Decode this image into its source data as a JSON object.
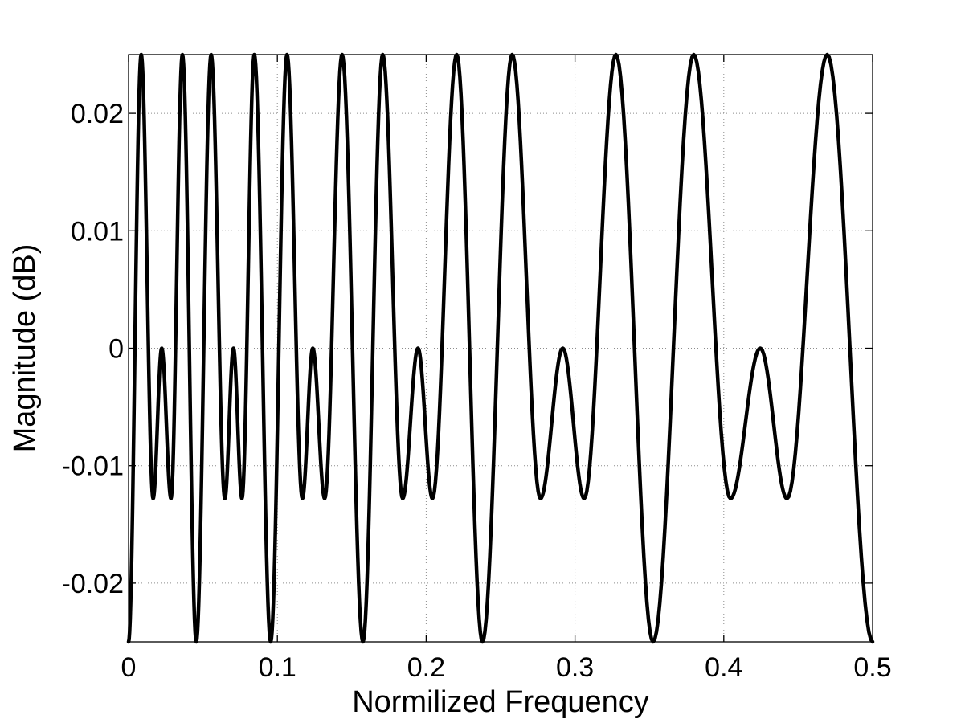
{
  "chart_data": {
    "type": "line",
    "title": "",
    "xlabel": "Normilized Frequency",
    "ylabel": "Magnitude (dB)",
    "xlim": [
      0,
      0.5
    ],
    "ylim": [
      -0.025,
      0.025
    ],
    "x_ticks": [
      0,
      0.1,
      0.2,
      0.3,
      0.4,
      0.5
    ],
    "x_tick_labels": [
      "0",
      "0.1",
      "0.2",
      "0.3",
      "0.4",
      "0.5"
    ],
    "y_ticks": [
      -0.02,
      -0.01,
      0,
      0.01,
      0.02
    ],
    "y_tick_labels": [
      "-0.02",
      "-0.01",
      "0",
      "0.01",
      "0.02"
    ],
    "grid": true,
    "line_color": "#000000",
    "series": [
      {
        "x": [
          0,
          0.0085,
          0.0165,
          0.0223,
          0.0285,
          0.0362,
          0.0455,
          0.0555,
          0.0647,
          0.0705,
          0.0762,
          0.0845,
          0.0955,
          0.1065,
          0.1168,
          0.1238,
          0.1318,
          0.1435,
          0.1575,
          0.1708,
          0.1842,
          0.1945,
          0.2042,
          0.2205,
          0.2378,
          0.2578,
          0.2768,
          0.2918,
          0.3062,
          0.3275,
          0.3525,
          0.3798,
          0.4045,
          0.4245,
          0.4425,
          0.4695,
          0.5
        ],
        "y": [
          -0.025,
          0.025,
          -0.0128,
          0,
          -0.0128,
          0.025,
          -0.025,
          0.025,
          -0.0128,
          0,
          -0.0128,
          0.025,
          -0.025,
          0.025,
          -0.0128,
          0,
          -0.0128,
          0.025,
          -0.025,
          0.025,
          -0.0128,
          0,
          -0.0128,
          0.025,
          -0.025,
          0.025,
          -0.0128,
          0,
          -0.0128,
          0.025,
          -0.025,
          0.025,
          -0.0128,
          0,
          -0.0128,
          0.025,
          -0.025
        ]
      }
    ]
  }
}
